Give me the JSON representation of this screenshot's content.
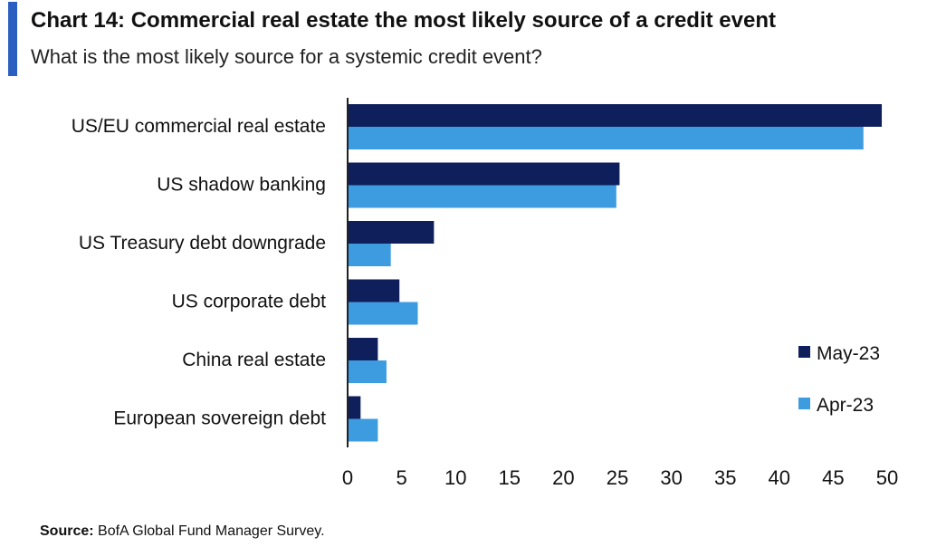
{
  "title": "Chart 14: Commercial real estate the most likely source of a credit event",
  "subtitle": "What is the most likely source for a systemic credit event?",
  "source": {
    "label": "Source:",
    "text": "BofA Global Fund Manager Survey."
  },
  "colors": {
    "accent": "#2a5fc1",
    "may": "#0e1f5c",
    "apr": "#3d9be0"
  },
  "chart_data": {
    "type": "bar",
    "orientation": "horizontal",
    "categories": [
      "US/EU commercial real estate",
      "US shadow banking",
      "US Treasury debt downgrade",
      "US corporate debt",
      "China real estate",
      "European sovereign debt"
    ],
    "series": [
      {
        "name": "May-23",
        "values": [
          49.5,
          25.2,
          8.0,
          4.8,
          2.8,
          1.2
        ]
      },
      {
        "name": "Apr-23",
        "values": [
          47.8,
          24.9,
          4.0,
          6.5,
          3.6,
          2.8
        ]
      }
    ],
    "xlim": [
      0,
      50
    ],
    "xticks": [
      0,
      5,
      10,
      15,
      20,
      25,
      30,
      35,
      40,
      45,
      50
    ],
    "legend_position": "bottom-right",
    "grid": false
  }
}
